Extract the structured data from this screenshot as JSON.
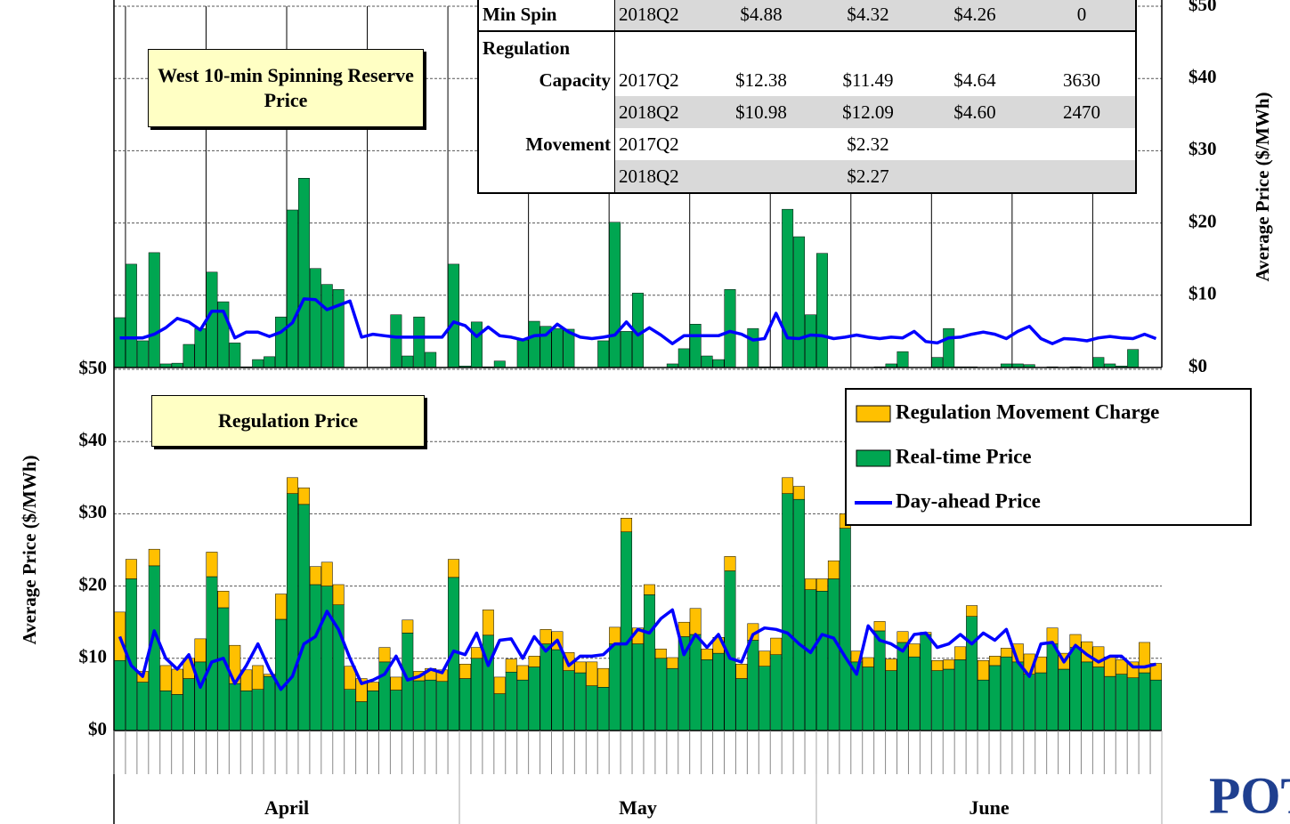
{
  "chart_data": [
    {
      "type": "bar",
      "title": "West 10-min Spinning Reserve Price",
      "ylabel": "Average Price ($/MWh)",
      "yaxis_side": "right",
      "ylim": [
        0,
        50
      ],
      "yticks": [
        {
          "value": 0,
          "label": "$0"
        },
        {
          "value": 10,
          "label": "$10"
        },
        {
          "value": 20,
          "label": "$20"
        },
        {
          "value": 30,
          "label": "$30"
        },
        {
          "value": 40,
          "label": "$40"
        },
        {
          "value": 50,
          "label": "$50"
        }
      ],
      "grid": true,
      "series": [
        {
          "kind": "bar",
          "color": "#00a651",
          "values": [
            6.9,
            14.3,
            3.7,
            15.9,
            0.5,
            0.6,
            3.2,
            5.4,
            13.2,
            9.1,
            3.4,
            0.1,
            1.1,
            1.5,
            7.0,
            21.8,
            26.2,
            13.7,
            11.5,
            10.8,
            null,
            null,
            null,
            null,
            7.3,
            1.6,
            7.0,
            2.1,
            null,
            14.3,
            0.2,
            6.3,
            0.1,
            0.9,
            null,
            3.8,
            6.4,
            5.7,
            5.4,
            5.3,
            null,
            null,
            3.7,
            20.1,
            5.0,
            10.3,
            null,
            null,
            0.5,
            2.6,
            6.0,
            1.6,
            1.1,
            10.8,
            null,
            5.4,
            0.1,
            0.1,
            21.9,
            18.1,
            7.3,
            15.8,
            null,
            null,
            null,
            null,
            0.1,
            0.5,
            2.2,
            null,
            null,
            1.4,
            5.4,
            0.1,
            0.1,
            null,
            null,
            0.5,
            0.5,
            0.4,
            null,
            0.1,
            null,
            0.1,
            null,
            1.4,
            0.5,
            0.2,
            2.5,
            null,
            null
          ]
        },
        {
          "kind": "line",
          "color": "#0000ff",
          "values": [
            4.1,
            4.1,
            4.1,
            4.6,
            5.5,
            6.8,
            6.3,
            5.2,
            7.8,
            7.8,
            4.1,
            4.9,
            4.9,
            4.3,
            4.9,
            6.2,
            9.5,
            9.4,
            8.0,
            8.6,
            9.2,
            4.2,
            4.6,
            4.4,
            4.2,
            4.2,
            4.2,
            4.2,
            4.2,
            6.3,
            5.8,
            4.3,
            5.6,
            4.4,
            4.2,
            3.8,
            4.4,
            4.5,
            6.0,
            4.9,
            4.2,
            4.0,
            4.2,
            4.5,
            6.3,
            4.5,
            5.5,
            4.5,
            3.3,
            4.4,
            4.4,
            4.4,
            4.4,
            5.0,
            4.6,
            3.8,
            4.0,
            7.5,
            4.1,
            4.0,
            4.5,
            4.4,
            4.0,
            4.2,
            4.5,
            4.2,
            4.0,
            4.2,
            4.1,
            5.0,
            3.6,
            3.4,
            4.1,
            4.2,
            4.6,
            4.9,
            4.6,
            4.0,
            5.0,
            5.7,
            4.0,
            3.3,
            4.0,
            3.9,
            3.7,
            4.1,
            4.3,
            4.1,
            4.0,
            4.6,
            4.0
          ]
        }
      ]
    },
    {
      "type": "bar",
      "title": "Regulation Price",
      "ylabel": "Average Price ($/MWh)",
      "yaxis_side": "left",
      "stacked": true,
      "ylim": [
        0,
        50
      ],
      "yticks": [
        {
          "value": 0,
          "label": "$0"
        },
        {
          "value": 10,
          "label": "$10"
        },
        {
          "value": 20,
          "label": "$20"
        },
        {
          "value": 30,
          "label": "$30"
        },
        {
          "value": 40,
          "label": "$40"
        },
        {
          "value": 50,
          "label": "$50"
        }
      ],
      "grid": true,
      "months": [
        {
          "label": "April",
          "days": 30
        },
        {
          "label": "May",
          "days": 31
        },
        {
          "label": "June",
          "days": 30
        }
      ],
      "series": [
        {
          "name": "Regulation Movement Charge",
          "kind": "bar",
          "color": "#ffc000",
          "values": [
            6.7,
            2.7,
            1.5,
            2.3,
            3.5,
            3.5,
            2.8,
            3.2,
            3.4,
            2.3,
            5.3,
            2.9,
            3.3,
            0.3,
            3.5,
            2.2,
            2.3,
            2.5,
            3.3,
            2.8,
            3.2,
            3.2,
            1.2,
            2.0,
            1.8,
            1.8,
            1.3,
            1.6,
            1.6,
            2.5,
            2.0,
            1.5,
            3.5,
            2.3,
            1.8,
            2.0,
            1.5,
            2.0,
            2.5,
            2.5,
            1.5,
            3.3,
            2.6,
            2.3,
            1.9,
            2.2,
            1.4,
            1.3,
            1.5,
            2.0,
            3.6,
            1.5,
            2.2,
            2.0,
            2.0,
            2.3,
            2.1,
            2.3,
            2.2,
            1.8,
            1.5,
            1.7,
            2.5,
            2.0,
            1.5,
            1.3,
            1.3,
            1.6,
            1.5,
            1.8,
            0.3,
            1.4,
            1.3,
            1.8,
            1.5,
            2.7,
            1.3,
            1.2,
            2.5,
            2.8,
            2.2,
            2.2,
            2.2,
            1.8,
            2.8,
            2.8,
            2.7,
            2.0,
            2.2,
            4.2,
            2.3
          ]
        },
        {
          "name": "Real-time Price",
          "kind": "bar",
          "color": "#00a651",
          "values": [
            9.7,
            21.0,
            6.7,
            22.8,
            5.5,
            5.0,
            7.2,
            9.5,
            21.3,
            17.0,
            6.5,
            5.5,
            5.7,
            7.5,
            15.4,
            32.8,
            31.3,
            20.2,
            20.0,
            17.4,
            5.7,
            4.0,
            5.5,
            9.5,
            5.6,
            13.5,
            6.9,
            7.0,
            6.8,
            21.2,
            7.2,
            10.0,
            13.2,
            5.1,
            8.1,
            7.0,
            8.8,
            12.0,
            11.2,
            8.3,
            8.0,
            6.2,
            6.0,
            12.0,
            27.5,
            12.0,
            18.8,
            10.0,
            8.6,
            13.0,
            13.3,
            9.8,
            10.7,
            22.1,
            7.2,
            12.5,
            8.9,
            10.5,
            32.8,
            32.0,
            19.5,
            19.3,
            21.0,
            28.0,
            9.5,
            8.8,
            13.8,
            8.3,
            12.2,
            10.2,
            13.3,
            8.3,
            8.5,
            9.8,
            15.8,
            7.0,
            9.0,
            10.2,
            9.5,
            7.8,
            8.0,
            12.0,
            8.5,
            11.5,
            9.5,
            8.8,
            7.5,
            7.8,
            7.3,
            8.0,
            7.0
          ]
        },
        {
          "name": "Day-ahead Price",
          "kind": "line",
          "color": "#0000ff",
          "values": [
            13.0,
            9.0,
            7.5,
            13.8,
            10.0,
            8.5,
            10.5,
            6.0,
            9.5,
            10.0,
            6.5,
            9.0,
            12.0,
            8.5,
            5.7,
            7.5,
            12.0,
            13.0,
            16.5,
            14.0,
            10.0,
            6.5,
            7.0,
            7.8,
            10.3,
            7.0,
            7.5,
            8.5,
            8.0,
            11.0,
            10.5,
            13.5,
            9.0,
            12.5,
            12.7,
            10.0,
            13.0,
            11.0,
            12.5,
            9.0,
            10.3,
            10.3,
            10.5,
            12.0,
            12.0,
            14.0,
            13.5,
            15.5,
            16.7,
            10.5,
            13.3,
            11.5,
            13.3,
            10.0,
            9.5,
            13.3,
            14.2,
            14.0,
            13.5,
            12.0,
            10.8,
            13.3,
            12.8,
            10.2,
            7.8,
            14.5,
            12.5,
            12.0,
            11.0,
            13.3,
            13.5,
            11.5,
            12.0,
            13.3,
            12.0,
            13.5,
            12.5,
            14.0,
            9.5,
            7.5,
            12.0,
            12.2,
            9.5,
            11.8,
            10.5,
            9.5,
            10.3,
            10.3,
            8.8,
            8.8,
            9.2
          ]
        }
      ]
    }
  ],
  "table": {
    "rows": [
      [
        "Min Spin",
        "2018Q2",
        "$4.88",
        "$4.32",
        "$4.26",
        "0"
      ],
      [
        "Regulation",
        null,
        null,
        null,
        null,
        null
      ],
      [
        "Capacity",
        "2017Q2",
        "$12.38",
        "$11.49",
        "$4.64",
        "3630"
      ],
      [
        null,
        "2018Q2",
        "$10.98",
        "$12.09",
        "$4.60",
        "2470"
      ],
      [
        "Movement",
        "2017Q2",
        null,
        "$2.32",
        null,
        null
      ],
      [
        null,
        "2018Q2",
        null,
        "$2.27",
        null,
        null
      ]
    ]
  },
  "logo": "POTC"
}
